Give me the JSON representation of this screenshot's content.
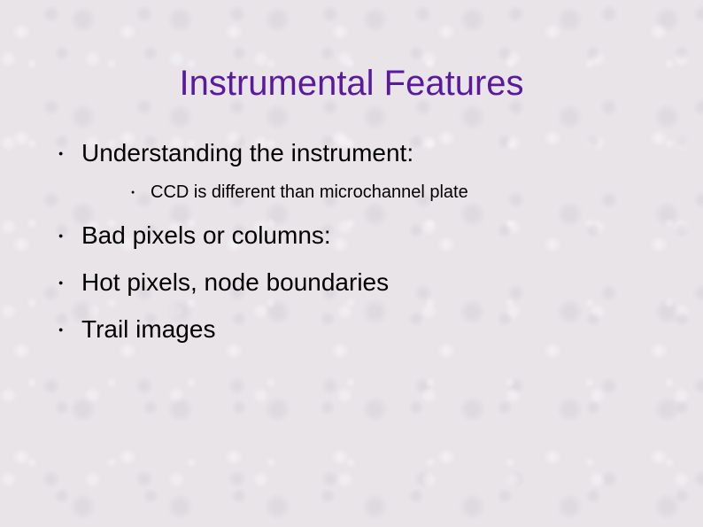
{
  "slide": {
    "title": "Instrumental Features",
    "title_color": "#5a1a9e",
    "title_fontsize": 40,
    "body_color": "#000000",
    "body_fontsize_l1": 28,
    "body_fontsize_l2": 20,
    "background_base": "#e8e4e8",
    "bullets": [
      {
        "text": "Understanding the instrument:",
        "children": [
          {
            "text": "CCD is different than microchannel plate"
          }
        ]
      },
      {
        "text": "Bad pixels or columns:"
      },
      {
        "text": "Hot pixels, node boundaries"
      },
      {
        "text": "Trail images"
      }
    ]
  }
}
